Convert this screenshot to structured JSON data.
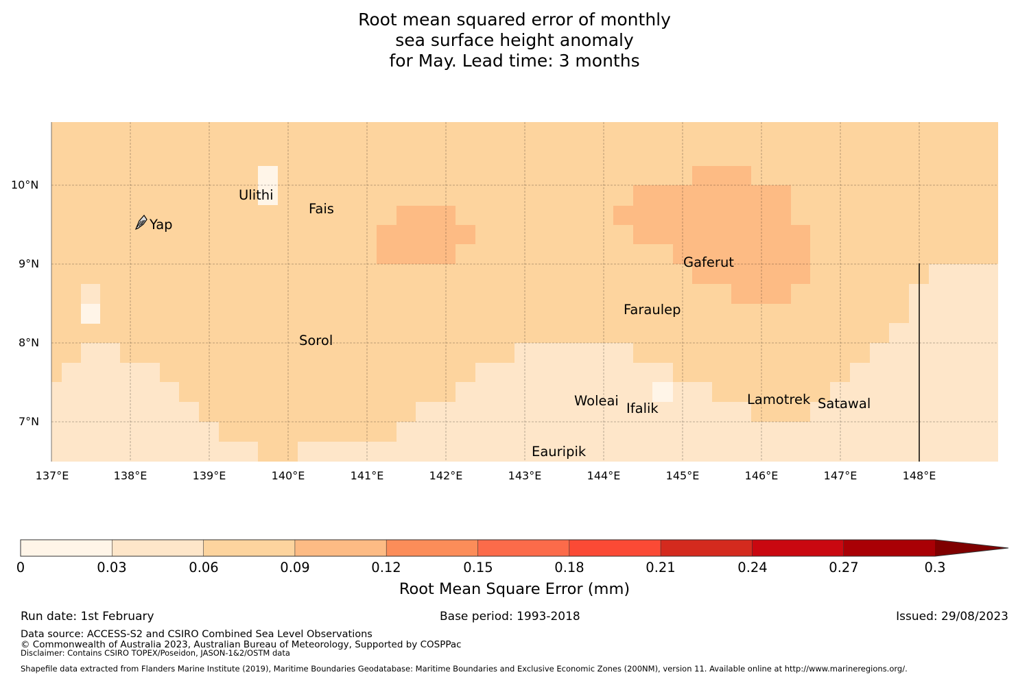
{
  "title": {
    "line1": "Root mean squared error of monthly",
    "line2": "sea surface height anomaly",
    "line3": "for May. Lead time: 3 months"
  },
  "map": {
    "lon_labels": [
      "137°E",
      "138°E",
      "139°E",
      "140°E",
      "141°E",
      "142°E",
      "143°E",
      "144°E",
      "145°E",
      "146°E",
      "147°E",
      "148°E"
    ],
    "lat_labels": [
      "10°N",
      "9°N",
      "8°N",
      "7°N"
    ],
    "places": [
      {
        "name": "Yap",
        "lon": 138.1,
        "lat": 9.5
      },
      {
        "name": "Ulithi",
        "lon": 139.75,
        "lat": 9.95
      },
      {
        "name": "Fais",
        "lon": 140.5,
        "lat": 9.75
      },
      {
        "name": "Gaferut",
        "lon": 145.35,
        "lat": 9.2
      },
      {
        "name": "Faraulep",
        "lon": 144.6,
        "lat": 8.55
      },
      {
        "name": "Sorol",
        "lon": 140.35,
        "lat": 8.1
      },
      {
        "name": "Woleai",
        "lon": 143.9,
        "lat": 7.35
      },
      {
        "name": "Ifalik",
        "lon": 144.45,
        "lat": 7.25
      },
      {
        "name": "Lamotrek",
        "lon": 146.3,
        "lat": 7.45
      },
      {
        "name": "Satawal",
        "lon": 147.05,
        "lat": 7.35
      },
      {
        "name": "Eauripik",
        "lon": 143.05,
        "lat": 6.7
      }
    ]
  },
  "colorbar": {
    "ticks": [
      "0",
      "0.03",
      "0.06",
      "0.09",
      "0.12",
      "0.15",
      "0.18",
      "0.21",
      "0.24",
      "0.27",
      "0.3"
    ],
    "colors": [
      "#fff5e8",
      "#fee6c9",
      "#fdd49e",
      "#fdbb84",
      "#fc8d59",
      "#fc6b4a",
      "#fb4a35",
      "#d42a1e",
      "#c90810",
      "#a90005"
    ],
    "extend_color": "#7f0000",
    "label": "Root Mean Square Error (mm)"
  },
  "footer": {
    "run_date": "Run date: 1st February",
    "base_period": "Base period: 1993-2018",
    "issued": "Issued: 29/08/2023",
    "data_source": "Data source: ACCESS-S2 and CSIRO Combined Sea Level Observations",
    "copyright": "© Commonwealth of Australia 2023, Australian Bureau of Meteorology, Supported by COSPPac",
    "disclaimer": "Disclaimer: Contains CSIRO TOPEX/Poseidon, JASON-1&2/OSTM data",
    "shapefile": "Shapefile data extracted from Flanders Marine Institute (2019), Maritime Boundaries Geodatabase: Maritime Boundaries and Exclusive Economic Zones (200NM), version 11. Available online at http://www.marineregions.org/."
  }
}
